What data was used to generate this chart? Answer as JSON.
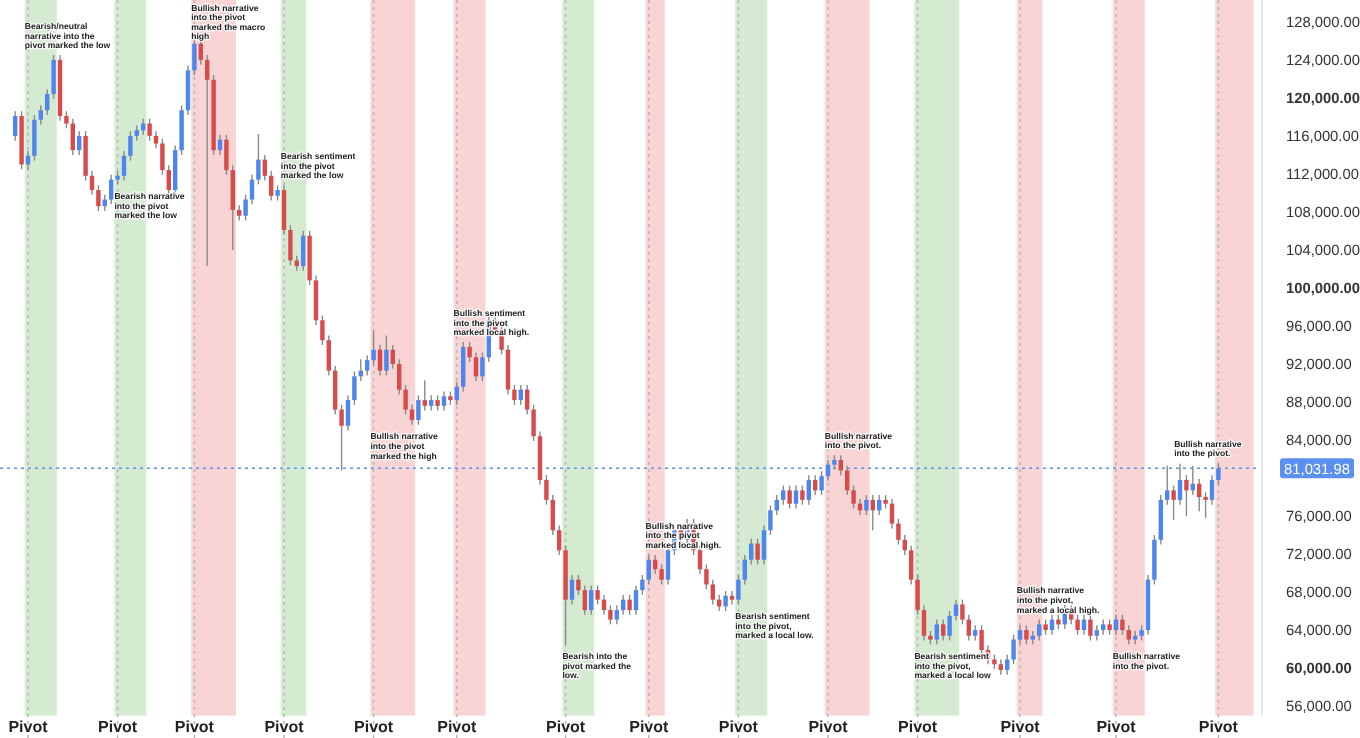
{
  "chart_data": {
    "type": "candlestick",
    "categories": [
      null,
      null,
      "Pivot",
      null,
      null,
      null,
      null,
      null,
      null,
      null,
      null,
      null,
      null,
      null,
      null,
      null,
      "Pivot",
      null,
      null,
      null,
      null,
      null,
      null,
      null,
      null,
      null,
      null,
      null,
      "Pivot",
      null,
      null,
      null,
      null,
      null,
      null,
      null,
      null,
      null,
      null,
      null,
      null,
      null,
      "Pivot",
      null,
      null,
      null,
      null,
      null,
      null,
      null,
      null,
      null,
      null,
      null,
      null,
      null,
      "Pivot",
      null,
      null,
      null,
      null,
      null,
      null,
      null,
      null,
      null,
      null,
      null,
      null,
      "Pivot",
      null,
      null,
      null,
      null,
      null,
      null,
      null,
      null,
      null,
      null,
      null,
      null,
      null,
      null,
      null,
      null,
      "Pivot",
      null,
      null,
      null,
      null,
      null,
      null,
      null,
      null,
      null,
      null,
      null,
      null,
      "Pivot",
      null,
      null,
      null,
      null,
      null,
      null,
      null,
      null,
      null,
      null,
      null,
      null,
      null,
      "Pivot",
      null,
      null,
      null,
      null,
      null,
      null,
      null,
      null,
      null,
      null,
      null,
      null,
      null,
      "Pivot",
      null,
      null,
      null,
      null,
      null,
      null,
      null,
      null,
      null,
      null,
      null,
      null,
      null,
      "Pivot",
      null,
      null,
      null,
      null,
      null,
      null,
      null,
      null,
      null,
      null,
      null,
      null,
      null,
      null,
      null,
      "Pivot",
      null,
      null,
      null,
      null,
      null,
      null,
      null,
      null,
      null,
      null,
      null,
      null,
      null,
      null,
      "Pivot",
      null,
      null,
      null,
      null,
      null,
      null,
      null,
      null,
      null,
      null,
      null,
      null,
      null,
      null,
      null,
      "Pivot"
    ],
    "ohlc": [
      [
        116000,
        118600,
        115500,
        118100
      ],
      [
        118100,
        118600,
        112500,
        113000
      ],
      [
        113000,
        114400,
        112500,
        113900
      ],
      [
        113900,
        118200,
        113400,
        117700
      ],
      [
        117700,
        119200,
        117200,
        118700
      ],
      [
        118700,
        120900,
        118200,
        120400
      ],
      [
        120400,
        124500,
        119900,
        124000
      ],
      [
        124000,
        124500,
        117600,
        118100
      ],
      [
        118100,
        118600,
        116800,
        117300
      ],
      [
        117300,
        117800,
        114000,
        114500
      ],
      [
        114500,
        116500,
        114000,
        116000
      ],
      [
        116000,
        116500,
        111300,
        111800
      ],
      [
        111800,
        112300,
        109800,
        110300
      ],
      [
        110300,
        110800,
        108100,
        108600
      ],
      [
        108600,
        109800,
        108100,
        109300
      ],
      [
        109300,
        111900,
        108800,
        111400
      ],
      [
        111400,
        112300,
        110900,
        111800
      ],
      [
        111800,
        114400,
        111300,
        113900
      ],
      [
        113900,
        116500,
        113400,
        116000
      ],
      [
        116000,
        117100,
        115500,
        116600
      ],
      [
        116600,
        117800,
        116100,
        117300
      ],
      [
        117300,
        117800,
        115500,
        116000
      ],
      [
        116000,
        116500,
        114700,
        115200
      ],
      [
        115200,
        115700,
        111900,
        112400
      ],
      [
        112400,
        112900,
        109800,
        110300
      ],
      [
        110300,
        115000,
        109800,
        114500
      ],
      [
        114500,
        119200,
        114000,
        118700
      ],
      [
        118700,
        123400,
        118200,
        122900
      ],
      [
        122900,
        126400,
        122400,
        125700
      ],
      [
        125700,
        126200,
        123500,
        124000
      ],
      [
        124000,
        124500,
        102300,
        121900
      ],
      [
        121900,
        122400,
        114000,
        114500
      ],
      [
        114500,
        116100,
        114000,
        115600
      ],
      [
        115600,
        116100,
        111900,
        112400
      ],
      [
        112400,
        112900,
        104000,
        108200
      ],
      [
        108200,
        108700,
        107100,
        107600
      ],
      [
        107600,
        109800,
        107100,
        109300
      ],
      [
        109300,
        111900,
        108800,
        111400
      ],
      [
        111400,
        116200,
        110900,
        113500
      ],
      [
        113500,
        114000,
        111300,
        111800
      ],
      [
        111800,
        112300,
        109200,
        109700
      ],
      [
        109700,
        110800,
        109200,
        110300
      ],
      [
        110300,
        110800,
        105600,
        106100
      ],
      [
        106100,
        106600,
        102400,
        102900
      ],
      [
        102900,
        103400,
        101800,
        102300
      ],
      [
        102300,
        106000,
        101800,
        105500
      ],
      [
        105500,
        106000,
        100300,
        100800
      ],
      [
        100800,
        101300,
        96100,
        96600
      ],
      [
        96600,
        97100,
        94000,
        94500
      ],
      [
        94500,
        95000,
        90800,
        91300
      ],
      [
        91300,
        91800,
        86700,
        87200
      ],
      [
        87200,
        87700,
        80800,
        85500
      ],
      [
        85500,
        88700,
        85000,
        88200
      ],
      [
        88200,
        91200,
        87700,
        90700
      ],
      [
        90700,
        92500,
        90200,
        91300
      ],
      [
        91300,
        92900,
        90800,
        92400
      ],
      [
        92400,
        95500,
        91900,
        93500
      ],
      [
        93500,
        94000,
        90800,
        91300
      ],
      [
        91300,
        95000,
        90800,
        93500
      ],
      [
        93500,
        94000,
        91500,
        92000
      ],
      [
        92000,
        92500,
        88800,
        89300
      ],
      [
        89300,
        89800,
        86700,
        87200
      ],
      [
        87200,
        87700,
        85600,
        86100
      ],
      [
        86100,
        88700,
        85600,
        88200
      ],
      [
        88200,
        90300,
        87100,
        87600
      ],
      [
        87600,
        88700,
        87100,
        88200
      ],
      [
        88200,
        88700,
        87100,
        87600
      ],
      [
        87600,
        89100,
        87100,
        88600
      ],
      [
        88600,
        89100,
        87700,
        88200
      ],
      [
        88200,
        90100,
        87700,
        89600
      ],
      [
        89600,
        94300,
        89100,
        93800
      ],
      [
        93800,
        94300,
        92200,
        92700
      ],
      [
        92700,
        93200,
        90200,
        90700
      ],
      [
        90700,
        93200,
        90200,
        92700
      ],
      [
        92700,
        97300,
        92200,
        96600
      ],
      [
        96600,
        97100,
        95100,
        95600
      ],
      [
        95600,
        96100,
        93000,
        93500
      ],
      [
        93500,
        94000,
        88800,
        89300
      ],
      [
        89300,
        89800,
        87700,
        88200
      ],
      [
        88200,
        89800,
        87700,
        89300
      ],
      [
        89300,
        89800,
        86700,
        87200
      ],
      [
        87200,
        87700,
        83900,
        84400
      ],
      [
        84400,
        84900,
        79300,
        79800
      ],
      [
        79800,
        80300,
        77200,
        77700
      ],
      [
        77700,
        78200,
        74000,
        74500
      ],
      [
        74500,
        75000,
        71900,
        72400
      ],
      [
        72400,
        72900,
        62500,
        67200
      ],
      [
        67200,
        69800,
        66700,
        69300
      ],
      [
        69300,
        69800,
        67700,
        68200
      ],
      [
        68200,
        68700,
        65600,
        66100
      ],
      [
        66100,
        68700,
        65600,
        68200
      ],
      [
        68200,
        68700,
        66700,
        67200
      ],
      [
        67200,
        67700,
        65600,
        66100
      ],
      [
        66100,
        66600,
        64600,
        65100
      ],
      [
        65100,
        66600,
        64600,
        66100
      ],
      [
        66100,
        67700,
        65600,
        67200
      ],
      [
        67200,
        67700,
        65600,
        66100
      ],
      [
        66100,
        68700,
        65600,
        68200
      ],
      [
        68200,
        69800,
        67700,
        69300
      ],
      [
        69300,
        71900,
        68800,
        71400
      ],
      [
        71400,
        71900,
        69900,
        70400
      ],
      [
        70400,
        70900,
        68800,
        69300
      ],
      [
        69300,
        72900,
        68800,
        72400
      ],
      [
        72400,
        75000,
        71900,
        74500
      ],
      [
        74500,
        75000,
        73000,
        73500
      ],
      [
        73500,
        75700,
        73000,
        75200
      ],
      [
        75200,
        75700,
        71900,
        72400
      ],
      [
        72400,
        72900,
        69900,
        70400
      ],
      [
        70400,
        70900,
        68300,
        68800
      ],
      [
        68800,
        69300,
        66700,
        67200
      ],
      [
        67200,
        67700,
        66000,
        66500
      ],
      [
        66500,
        68100,
        66000,
        67600
      ],
      [
        67600,
        68100,
        66700,
        67200
      ],
      [
        67200,
        69800,
        66700,
        69300
      ],
      [
        69300,
        71900,
        68800,
        71400
      ],
      [
        71400,
        73600,
        70900,
        73100
      ],
      [
        73100,
        73600,
        70900,
        71400
      ],
      [
        71400,
        75000,
        70900,
        74500
      ],
      [
        74500,
        77100,
        74000,
        76600
      ],
      [
        76600,
        78200,
        76100,
        77700
      ],
      [
        77700,
        79200,
        77200,
        78700
      ],
      [
        78700,
        79200,
        76800,
        77300
      ],
      [
        77300,
        79200,
        76800,
        78700
      ],
      [
        78700,
        79200,
        77200,
        77700
      ],
      [
        77700,
        80300,
        77200,
        79800
      ],
      [
        79800,
        80300,
        78200,
        78700
      ],
      [
        78700,
        80700,
        78200,
        80200
      ],
      [
        80200,
        81900,
        79700,
        81400
      ],
      [
        81400,
        82400,
        80900,
        81900
      ],
      [
        81900,
        82400,
        80300,
        80800
      ],
      [
        80800,
        81300,
        78200,
        78700
      ],
      [
        78700,
        79200,
        76800,
        77300
      ],
      [
        77300,
        77800,
        76100,
        76600
      ],
      [
        76600,
        78200,
        76100,
        77700
      ],
      [
        77700,
        78200,
        74500,
        76600
      ],
      [
        76600,
        78200,
        76100,
        77700
      ],
      [
        77700,
        78200,
        76800,
        77300
      ],
      [
        77300,
        77800,
        74700,
        75200
      ],
      [
        75200,
        75700,
        73000,
        73500
      ],
      [
        73500,
        74000,
        71900,
        72400
      ],
      [
        72400,
        72900,
        68800,
        69300
      ],
      [
        69300,
        69800,
        65600,
        66100
      ],
      [
        66100,
        66600,
        62900,
        63400
      ],
      [
        63400,
        63900,
        62500,
        63000
      ],
      [
        63000,
        65100,
        62500,
        64600
      ],
      [
        64600,
        65100,
        62900,
        63400
      ],
      [
        63400,
        66000,
        62900,
        65500
      ],
      [
        65500,
        67200,
        65000,
        66700
      ],
      [
        66700,
        67200,
        64600,
        65100
      ],
      [
        65100,
        65600,
        62900,
        63400
      ],
      [
        63400,
        64500,
        62900,
        64000
      ],
      [
        64000,
        64500,
        61400,
        61900
      ],
      [
        61900,
        62400,
        60400,
        60900
      ],
      [
        60900,
        61400,
        59900,
        60400
      ],
      [
        60400,
        60900,
        59300,
        59800
      ],
      [
        59800,
        61400,
        59300,
        60900
      ],
      [
        60900,
        63500,
        60400,
        63000
      ],
      [
        63000,
        64500,
        62500,
        64000
      ],
      [
        64000,
        64500,
        62500,
        63000
      ],
      [
        63000,
        63900,
        62500,
        63400
      ],
      [
        63400,
        65100,
        62900,
        64600
      ],
      [
        64600,
        65100,
        63500,
        64000
      ],
      [
        64000,
        65600,
        63500,
        65100
      ],
      [
        65100,
        65600,
        64100,
        64600
      ],
      [
        64600,
        66600,
        64100,
        66100
      ],
      [
        66100,
        66600,
        64600,
        65100
      ],
      [
        65100,
        65600,
        63500,
        64000
      ],
      [
        64000,
        65600,
        63500,
        65100
      ],
      [
        65100,
        65600,
        62900,
        63400
      ],
      [
        63400,
        64500,
        62900,
        64000
      ],
      [
        64000,
        65100,
        63500,
        64600
      ],
      [
        64600,
        65100,
        63500,
        64000
      ],
      [
        64000,
        65600,
        63500,
        65100
      ],
      [
        65100,
        65600,
        63500,
        64000
      ],
      [
        64000,
        64500,
        62500,
        63000
      ],
      [
        63000,
        63900,
        62500,
        63400
      ],
      [
        63400,
        64500,
        62900,
        64000
      ],
      [
        64000,
        69800,
        63500,
        69300
      ],
      [
        69300,
        74000,
        68800,
        73500
      ],
      [
        73500,
        78200,
        73000,
        77700
      ],
      [
        77700,
        81300,
        77200,
        78700
      ],
      [
        78700,
        79200,
        75600,
        77700
      ],
      [
        77700,
        81500,
        77200,
        79800
      ],
      [
        79800,
        80300,
        76000,
        78700
      ],
      [
        78700,
        81300,
        78200,
        79400
      ],
      [
        79400,
        79900,
        76500,
        78000
      ],
      [
        78000,
        78500,
        75800,
        77700
      ],
      [
        77700,
        80300,
        77200,
        79800
      ],
      [
        79800,
        81531.98,
        79300,
        81031.98
      ]
    ],
    "ylim": [
      55000,
      130300
    ],
    "yticks": [
      {
        "value": 56000,
        "label": "56,000.00"
      },
      {
        "value": 60000,
        "label": "60,000.00"
      },
      {
        "value": 64000,
        "label": "64,000.00"
      },
      {
        "value": 68000,
        "label": "68,000.00"
      },
      {
        "value": 72000,
        "label": "72,000.00"
      },
      {
        "value": 76000,
        "label": "76,000.00"
      },
      {
        "value": 84000,
        "label": "84,000.00"
      },
      {
        "value": 88000,
        "label": "88,000.00"
      },
      {
        "value": 92000,
        "label": "92,000.00"
      },
      {
        "value": 96000,
        "label": "96,000.00"
      },
      {
        "value": 100000,
        "label": "100,000.00"
      },
      {
        "value": 104000,
        "label": "104,000.00"
      },
      {
        "value": 108000,
        "label": "108,000.00"
      },
      {
        "value": 112000,
        "label": "112,000.00"
      },
      {
        "value": 116000,
        "label": "116,000.00"
      },
      {
        "value": 120000,
        "label": "120,000.00"
      },
      {
        "value": 124000,
        "label": "124,000.00"
      },
      {
        "value": 128000,
        "label": "128,000.00"
      }
    ],
    "grid": "x",
    "ref_lines": [
      {
        "axis": "y",
        "value": 81031.98,
        "label": "81,031.98",
        "color": "#5b8ff0",
        "line_style": "dotted"
      }
    ],
    "annotations": [
      "Bearish/neutral narrative into the pivot marked the low",
      "Bearish narrative into the pivot marked the low",
      "Bullish narrative into the pivot marked the macro high",
      "Bearish sentiment into the pivot marked the low",
      "Bullish narrative into the pivot marked the high",
      "Bullish sentiment into the pivot marked local high.",
      "Bearish into the pivot marked the low.",
      "Bullish narrative into the pivot marked local high.",
      "Bearish sentiment into the pivot, marked a local low.",
      "Bullish narrative into the pivot.",
      "Bearish sentiment into the pivot, marked a local low",
      "Bullish narrative into the pivot, marked a local high.",
      "Bullish narrative into the pivot.",
      "Bullish narrative into the pivot."
    ]
  }
}
